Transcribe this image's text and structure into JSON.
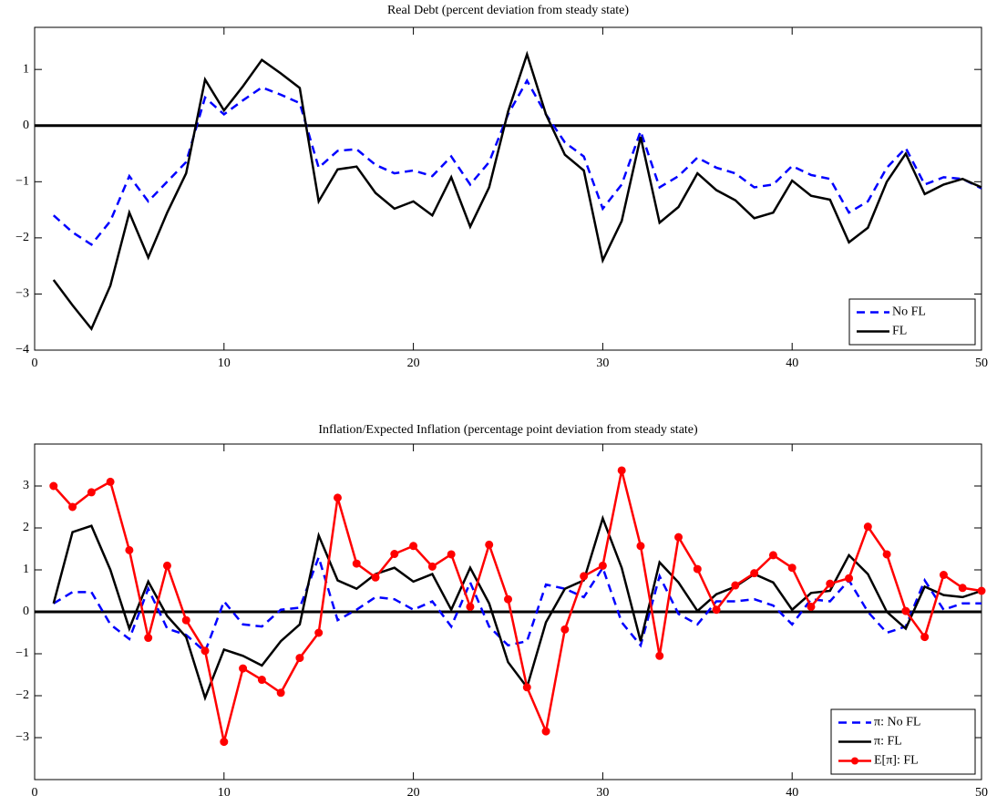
{
  "chart_data": [
    {
      "type": "line",
      "title": "Real Debt (percent deviation from steady state)",
      "x": [
        1,
        2,
        3,
        4,
        5,
        6,
        7,
        8,
        9,
        10,
        11,
        12,
        13,
        14,
        15,
        16,
        17,
        18,
        19,
        20,
        21,
        22,
        23,
        24,
        25,
        26,
        27,
        28,
        29,
        30,
        31,
        32,
        33,
        34,
        35,
        36,
        37,
        38,
        39,
        40,
        41,
        42,
        43,
        44,
        45,
        46,
        47,
        48,
        49,
        50
      ],
      "series": [
        {
          "name": "No FL",
          "color": "#0000ff",
          "linestyle": "--",
          "values": [
            -1.6,
            -1.9,
            -2.12,
            -1.7,
            -0.9,
            -1.35,
            -1.0,
            -0.65,
            0.5,
            0.2,
            0.45,
            0.68,
            0.55,
            0.4,
            -0.75,
            -0.45,
            -0.42,
            -0.7,
            -0.85,
            -0.8,
            -0.9,
            -0.55,
            -1.05,
            -0.65,
            0.2,
            0.8,
            0.2,
            -0.3,
            -0.55,
            -1.48,
            -1.05,
            -0.1,
            -1.1,
            -0.9,
            -0.57,
            -0.75,
            -0.85,
            -1.1,
            -1.05,
            -0.72,
            -0.88,
            -0.95,
            -1.55,
            -1.35,
            -0.75,
            -0.4,
            -1.05,
            -0.92,
            -0.95,
            -1.12
          ]
        },
        {
          "name": "FL",
          "color": "#000000",
          "linestyle": "-",
          "values": [
            -2.75,
            -3.2,
            -3.62,
            -2.85,
            -1.55,
            -2.35,
            -1.55,
            -0.85,
            0.82,
            0.27,
            0.7,
            1.17,
            0.93,
            0.67,
            -1.35,
            -0.78,
            -0.73,
            -1.2,
            -1.48,
            -1.35,
            -1.6,
            -0.92,
            -1.8,
            -1.1,
            0.25,
            1.27,
            0.2,
            -0.52,
            -0.8,
            -2.4,
            -1.7,
            -0.2,
            -1.73,
            -1.45,
            -0.85,
            -1.15,
            -1.33,
            -1.65,
            -1.55,
            -0.98,
            -1.25,
            -1.32,
            -2.08,
            -1.82,
            -1.0,
            -0.5,
            -1.22,
            -1.05,
            -0.95,
            -1.1
          ]
        }
      ],
      "xlim": [
        0,
        50
      ],
      "xticks": [
        0,
        10,
        20,
        30,
        40,
        50
      ],
      "ylim": [
        -4,
        1.75
      ],
      "yticks": [
        {
          "value": -4,
          "label": "−4"
        },
        {
          "value": -3,
          "label": "−3"
        },
        {
          "value": -2,
          "label": "−2"
        },
        {
          "value": -1,
          "label": "−1"
        },
        0,
        1
      ],
      "reference_line": 0,
      "legend": "lower right"
    },
    {
      "type": "line",
      "title": "Inflation/Expected Inflation (percentage point deviation from steady state)",
      "x": [
        1,
        2,
        3,
        4,
        5,
        6,
        7,
        8,
        9,
        10,
        11,
        12,
        13,
        14,
        15,
        16,
        17,
        18,
        19,
        20,
        21,
        22,
        23,
        24,
        25,
        26,
        27,
        28,
        29,
        30,
        31,
        32,
        33,
        34,
        35,
        36,
        37,
        38,
        39,
        40,
        41,
        42,
        43,
        44,
        45,
        46,
        47,
        48,
        49,
        50
      ],
      "series": [
        {
          "name": "π: No FL",
          "color": "#0000ff",
          "linestyle": "--",
          "values": [
            0.2,
            0.47,
            0.47,
            -0.3,
            -0.65,
            0.55,
            -0.4,
            -0.55,
            -0.95,
            0.25,
            -0.3,
            -0.35,
            0.05,
            0.1,
            1.3,
            -0.2,
            0.05,
            0.35,
            0.3,
            0.05,
            0.25,
            -0.35,
            0.7,
            -0.35,
            -0.8,
            -0.7,
            0.65,
            0.55,
            0.35,
            1.05,
            -0.25,
            -0.8,
            0.85,
            -0.05,
            -0.3,
            0.25,
            0.25,
            0.3,
            0.15,
            -0.3,
            0.3,
            0.25,
            0.75,
            0.0,
            -0.5,
            -0.35,
            0.75,
            0.05,
            0.2,
            0.2
          ]
        },
        {
          "name": "π: FL",
          "color": "#000000",
          "linestyle": "-",
          "values": [
            0.2,
            1.9,
            2.05,
            1.0,
            -0.4,
            0.72,
            -0.1,
            -0.6,
            -2.05,
            -0.9,
            -1.05,
            -1.28,
            -0.7,
            -0.3,
            1.82,
            0.75,
            0.55,
            0.9,
            1.05,
            0.72,
            0.9,
            0.05,
            1.05,
            0.2,
            -1.2,
            -1.8,
            -0.25,
            0.55,
            0.75,
            2.23,
            1.05,
            -0.7,
            1.18,
            0.7,
            0.02,
            0.42,
            0.6,
            0.9,
            0.7,
            0.05,
            0.45,
            0.5,
            1.35,
            0.9,
            0.0,
            -0.4,
            0.6,
            0.4,
            0.35,
            0.5
          ]
        },
        {
          "name": "E[π]: FL",
          "color": "#ff0000",
          "linestyle": "-",
          "marker": "o",
          "values": [
            3.0,
            2.5,
            2.85,
            3.1,
            1.47,
            -0.62,
            1.1,
            -0.2,
            -0.93,
            -3.1,
            -1.35,
            -1.62,
            -1.93,
            -1.1,
            -0.5,
            2.72,
            1.15,
            0.82,
            1.38,
            1.57,
            1.08,
            1.37,
            0.12,
            1.6,
            0.3,
            -1.8,
            -2.85,
            -0.42,
            0.85,
            1.1,
            3.37,
            1.57,
            -1.05,
            1.78,
            1.02,
            0.05,
            0.63,
            0.92,
            1.35,
            1.05,
            0.12,
            0.67,
            0.8,
            2.03,
            1.37,
            0.02,
            -0.6,
            0.88,
            0.57,
            0.5
          ]
        }
      ],
      "xlim": [
        0,
        50
      ],
      "xticks": [
        0,
        10,
        20,
        30,
        40,
        50
      ],
      "ylim": [
        -4,
        4
      ],
      "yticks": [
        {
          "value": -3,
          "label": "−3"
        },
        {
          "value": -2,
          "label": "−2"
        },
        {
          "value": -1,
          "label": "−1"
        },
        0,
        1,
        2,
        3
      ],
      "reference_line": 0,
      "legend": "lower right"
    }
  ]
}
